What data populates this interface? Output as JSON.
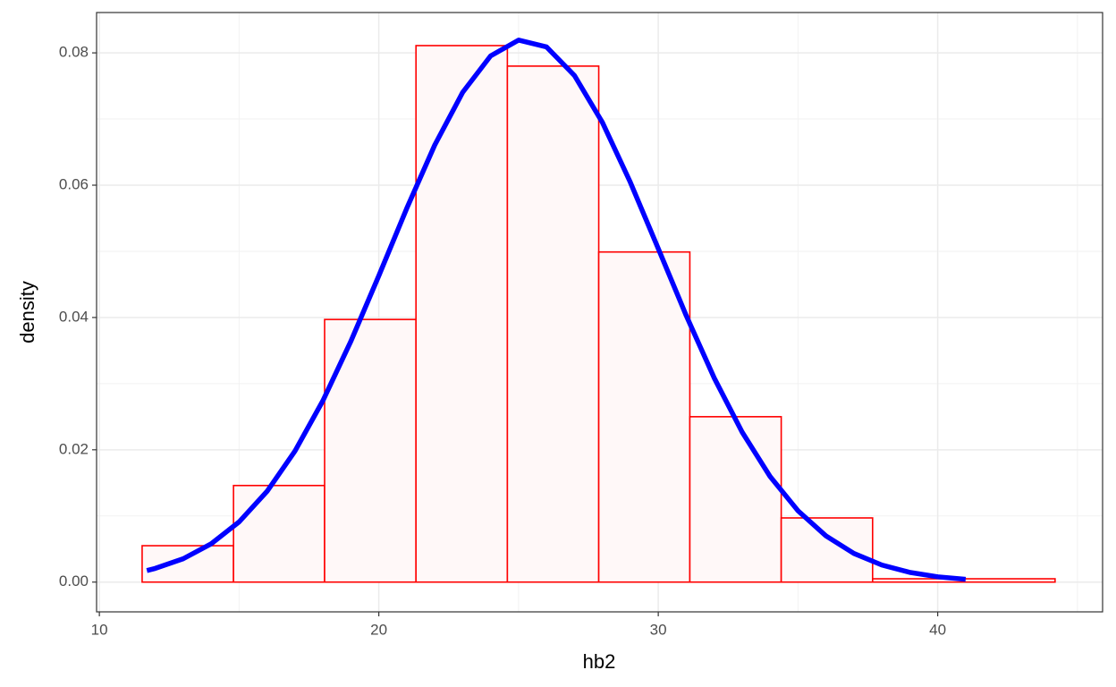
{
  "chart_data": {
    "type": "histogram",
    "x_label": "hb2",
    "y_label": "density",
    "bins": [
      11.53,
      14.8,
      18.06,
      21.33,
      24.6,
      27.87,
      31.13,
      34.4,
      37.67,
      40.94,
      44.2
    ],
    "values": [
      0.0055,
      0.0146,
      0.0397,
      0.0811,
      0.078,
      0.0499,
      0.025,
      0.0097,
      0.0005,
      0.0005
    ],
    "bar_fill": "#fff8f8",
    "bar_edge": "#ff0000",
    "density_curve": {
      "color": "#0000ff",
      "x": [
        11.7,
        12,
        13,
        14,
        15,
        16,
        17,
        18,
        19,
        20,
        21,
        22,
        23,
        24,
        25,
        26,
        27,
        28,
        29,
        30,
        31,
        32,
        33,
        34,
        35,
        36,
        37,
        38,
        39,
        40,
        41
      ],
      "values": [
        0.00175,
        0.00207,
        0.00353,
        0.00579,
        0.0091,
        0.01372,
        0.01981,
        0.02743,
        0.03641,
        0.04631,
        0.0565,
        0.06605,
        0.07403,
        0.07954,
        0.08193,
        0.0809,
        0.07658,
        0.06949,
        0.06044,
        0.05041,
        0.04029,
        0.03087,
        0.02268,
        0.01597,
        0.01078,
        0.00698,
        0.00433,
        0.00258,
        0.00147,
        0.0008,
        0.00042
      ]
    },
    "xlim": [
      9.9,
      45.9
    ],
    "ylim": [
      -0.0045,
      0.0861
    ],
    "xticks": [
      10,
      20,
      30,
      40
    ],
    "yticks": [
      {
        "value": 0,
        "label": "0.00"
      },
      0.02,
      0.04,
      0.06,
      0.08
    ],
    "x_minor_grid": [
      15,
      25,
      35,
      45
    ],
    "y_minor_grid": [
      0.01,
      0.03,
      0.05,
      0.07
    ],
    "grid": true
  }
}
